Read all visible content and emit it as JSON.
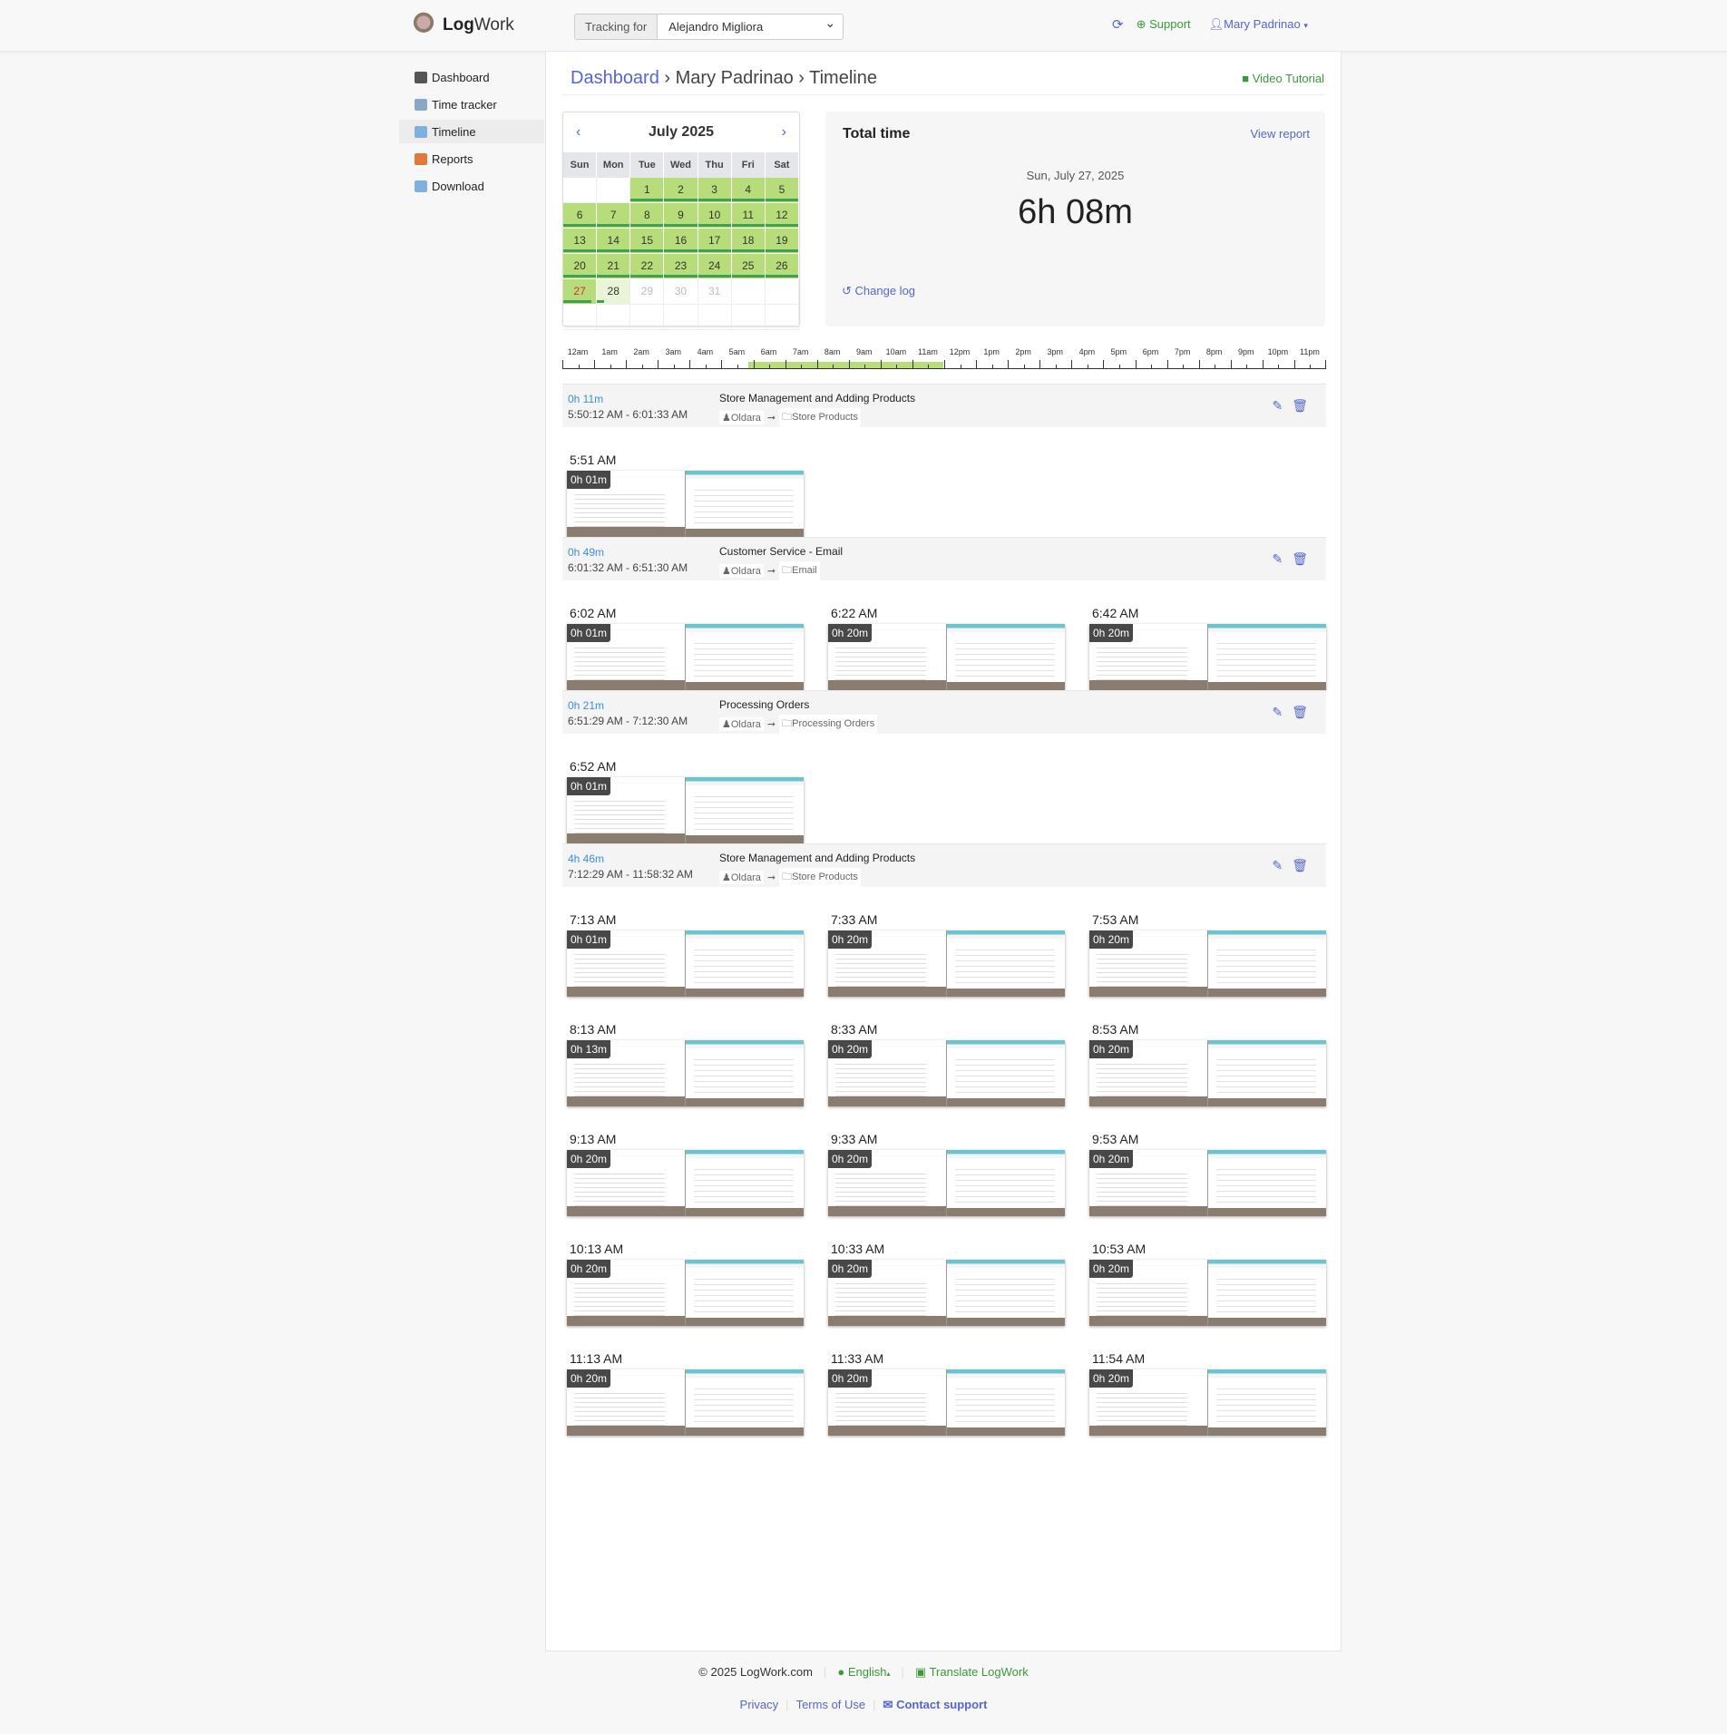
{
  "header": {
    "brand_bold": "Log",
    "brand_rest": "Work",
    "tracking_label": "Tracking for",
    "tracking_value": "Alejandro Migliora",
    "support": "Support",
    "user": "Mary Padrinao",
    "icons": [
      "refresh-icon",
      "support-icon",
      "user-icon",
      "caret-down-icon"
    ]
  },
  "sidebar": {
    "items": [
      {
        "label": "Dashboard",
        "icon": "dashboard-icon",
        "color": "#555"
      },
      {
        "label": "Time tracker",
        "icon": "clock-icon",
        "color": "#8aa6c8"
      },
      {
        "label": "Timeline",
        "icon": "timeline-icon",
        "color": "#7fb0e0",
        "active": true
      },
      {
        "label": "Reports",
        "icon": "bar-chart-icon",
        "color": "#e07a3a"
      },
      {
        "label": "Download",
        "icon": "folder-icon",
        "color": "#7fb0e0"
      }
    ]
  },
  "breadcrumb": {
    "root": "Dashboard",
    "person": "Mary Padrinao",
    "page": "Timeline",
    "sep": "›"
  },
  "video_tutorial": "Video Tutorial",
  "calendar": {
    "title": "July 2025",
    "prev": "‹",
    "next": "›",
    "weekdays": [
      "Sun",
      "Mon",
      "Tue",
      "Wed",
      "Thu",
      "Fri",
      "Sat"
    ],
    "leading_blanks": 2,
    "days_in_month": 31,
    "selected_day": 27,
    "today": 28,
    "active_days": [
      1,
      2,
      3,
      4,
      5,
      6,
      7,
      8,
      9,
      10,
      11,
      12,
      13,
      14,
      15,
      16,
      17,
      18,
      19,
      20,
      21,
      22,
      23,
      24,
      25,
      26,
      27
    ],
    "colors": {
      "active": "#b7dd7b",
      "bar": "#3fa34d",
      "selected": "#d03030"
    }
  },
  "total": {
    "title": "Total time",
    "view_report": "View report",
    "date": "Sun, July 27, 2025",
    "value": "6h 08m",
    "change_log": "Change log"
  },
  "ruler": {
    "labels": [
      "12am",
      "1am",
      "2am",
      "3am",
      "4am",
      "5am",
      "6am",
      "7am",
      "8am",
      "9am",
      "10am",
      "11am",
      "12pm",
      "1pm",
      "2pm",
      "3pm",
      "4pm",
      "5pm",
      "6pm",
      "7pm",
      "8pm",
      "9pm",
      "10pm",
      "11pm"
    ],
    "activity_start_hour": 5.84,
    "activity_end_hour": 11.98
  },
  "entries": [
    {
      "duration": "0h 11m",
      "range": "5:50:12 AM - 6:01:33 AM",
      "title": "Store Management and Adding Products",
      "client": "Oldara",
      "project": "Store Products",
      "shots": [
        {
          "time": "5:51 AM",
          "dur": "0h 01m"
        }
      ]
    },
    {
      "duration": "0h 49m",
      "range": "6:01:32 AM - 6:51:30 AM",
      "title": "Customer Service - Email",
      "client": "Oldara",
      "project": "Email",
      "shots": [
        {
          "time": "6:02 AM",
          "dur": "0h 01m"
        },
        {
          "time": "6:22 AM",
          "dur": "0h 20m"
        },
        {
          "time": "6:42 AM",
          "dur": "0h 20m"
        }
      ]
    },
    {
      "duration": "0h 21m",
      "range": "6:51:29 AM - 7:12:30 AM",
      "title": "Processing Orders",
      "client": "Oldara",
      "project": "Processing Orders",
      "shots": [
        {
          "time": "6:52 AM",
          "dur": "0h 01m"
        }
      ]
    },
    {
      "duration": "4h 46m",
      "range": "7:12:29 AM - 11:58:32 AM",
      "title": "Store Management and Adding Products",
      "client": "Oldara",
      "project": "Store Products",
      "shots": [
        {
          "time": "7:13 AM",
          "dur": "0h 01m"
        },
        {
          "time": "7:33 AM",
          "dur": "0h 20m"
        },
        {
          "time": "7:53 AM",
          "dur": "0h 20m"
        },
        {
          "time": "8:13 AM",
          "dur": "0h 13m"
        },
        {
          "time": "8:33 AM",
          "dur": "0h 20m"
        },
        {
          "time": "8:53 AM",
          "dur": "0h 20m"
        },
        {
          "time": "9:13 AM",
          "dur": "0h 20m"
        },
        {
          "time": "9:33 AM",
          "dur": "0h 20m"
        },
        {
          "time": "9:53 AM",
          "dur": "0h 20m"
        },
        {
          "time": "10:13 AM",
          "dur": "0h 20m"
        },
        {
          "time": "10:33 AM",
          "dur": "0h 20m"
        },
        {
          "time": "10:53 AM",
          "dur": "0h 20m"
        },
        {
          "time": "11:13 AM",
          "dur": "0h 20m"
        },
        {
          "time": "11:33 AM",
          "dur": "0h 20m"
        },
        {
          "time": "11:54 AM",
          "dur": "0h 20m"
        }
      ]
    }
  ],
  "footer": {
    "copyright": "© 2025 LogWork.com",
    "language": "English",
    "translate": "Translate LogWork",
    "privacy": "Privacy",
    "terms": "Terms of Use",
    "contact": "Contact support"
  }
}
